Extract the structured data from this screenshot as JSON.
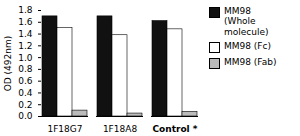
{
  "chart_data": {
    "type": "bar",
    "categories": [
      "1F18G7",
      "1F18A8",
      "Control *"
    ],
    "series": [
      {
        "name": "MM98\n(Whole molecule)",
        "color": "#111111",
        "values": [
          1.7,
          1.7,
          1.62
        ]
      },
      {
        "name": "MM98 (Fc)",
        "color": "#ffffff",
        "values": [
          1.5,
          1.38,
          1.48
        ]
      },
      {
        "name": "MM98 (Fab)",
        "color": "#bbbbbb",
        "values": [
          0.1,
          0.05,
          0.08
        ]
      }
    ],
    "ylabel": "OD (492nm)",
    "ylim": [
      0,
      1.8
    ],
    "yticks": [
      0,
      0.2,
      0.4,
      0.6,
      0.8,
      1,
      1.2,
      1.4,
      1.6,
      1.8
    ],
    "legend": "upper right"
  }
}
